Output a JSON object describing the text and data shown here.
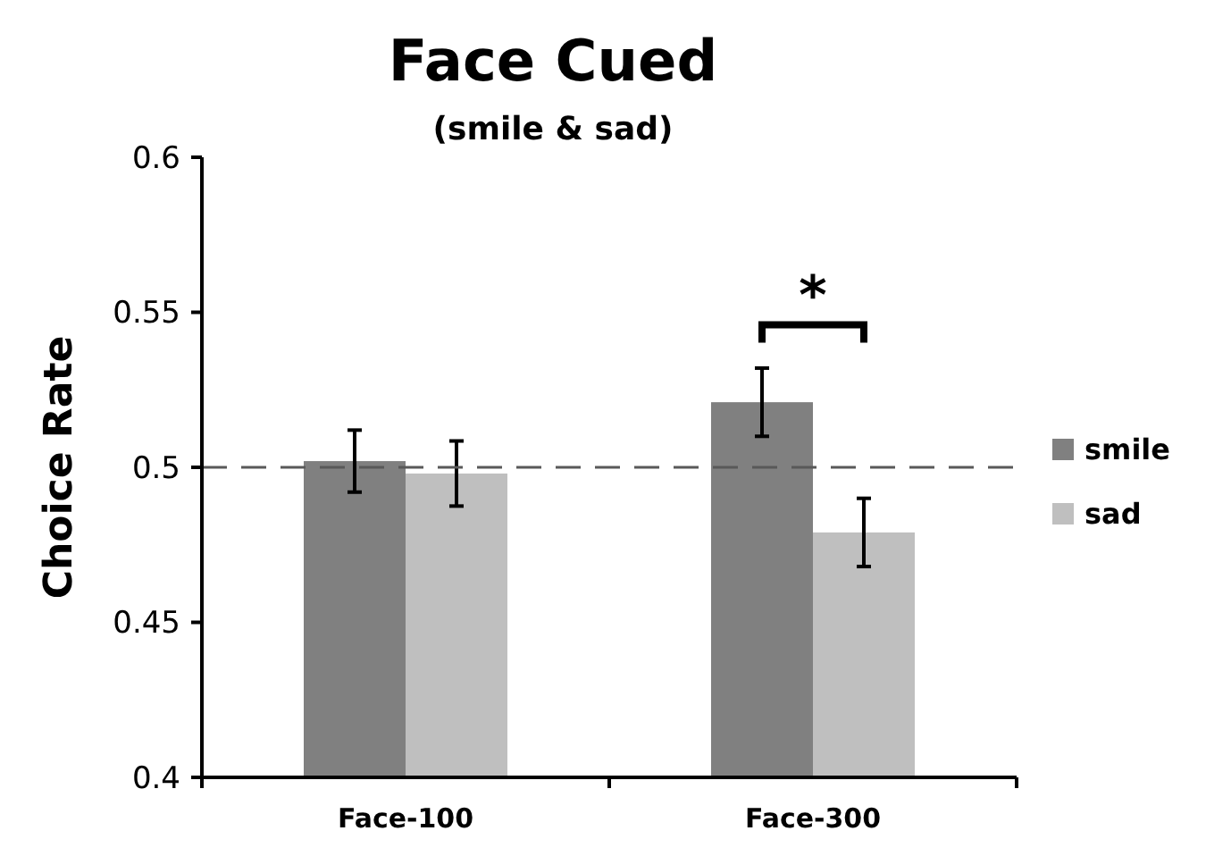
{
  "chart_data": {
    "type": "bar",
    "title": "Face Cued",
    "subtitle": "(smile & sad)",
    "ylabel": "Choice Rate",
    "categories": [
      "Face-100",
      "Face-300"
    ],
    "series": [
      {
        "name": "smile",
        "color": "#808080",
        "values": [
          0.502,
          0.521
        ],
        "errors": [
          0.01,
          0.011
        ]
      },
      {
        "name": "sad",
        "color": "#bfbfbf",
        "values": [
          0.498,
          0.479
        ],
        "errors": [
          0.0105,
          0.011
        ]
      }
    ],
    "ylim": [
      0.4,
      0.6
    ],
    "yticks": [
      0.4,
      0.45,
      0.5,
      0.55,
      0.6
    ],
    "grid": false,
    "legend": "right",
    "ref_lines": [
      {
        "axis": "y",
        "value": 0.5,
        "color": "#595959",
        "line_style": "dashed"
      }
    ],
    "annotations": [
      "*"
    ]
  }
}
